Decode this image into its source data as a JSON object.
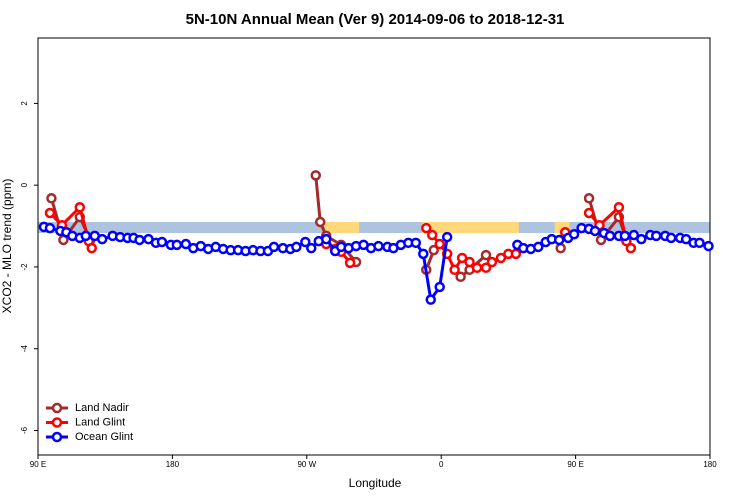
{
  "chart_data": {
    "type": "line",
    "title": "5N-10N Annual Mean (Ver 9)   2014-09-06 to 2018-12-31",
    "x_label": "Longitude",
    "y_label": "XCO2 - MLO trend (ppm)",
    "xlim": [
      90,
      540
    ],
    "ylim": [
      -6.6,
      3.6
    ],
    "xticks": [
      {
        "value": 90,
        "label": "90 E"
      },
      {
        "value": 180,
        "label": "180"
      },
      {
        "value": 270,
        "label": "90 W"
      },
      {
        "value": 360,
        "label": "0"
      },
      {
        "value": 450,
        "label": "90 E"
      },
      {
        "value": 540,
        "label": "180"
      }
    ],
    "yticks": [
      -6,
      -4,
      -2,
      0,
      2
    ],
    "band": {
      "y": [
        -1.17,
        -0.9
      ],
      "color": "#aec3df"
    },
    "highlights": [
      {
        "x": [
          281,
          305
        ],
        "color": "#ffd87a"
      },
      {
        "x": [
          347,
          412
        ],
        "color": "#ffd87a"
      },
      {
        "x": [
          436,
          446
        ],
        "color": "#ffd87a"
      }
    ],
    "legend": "bottom-left",
    "series": [
      {
        "name": "Land Nadir",
        "color": "#a52a2a",
        "x": [
          99,
          107,
          118,
          125,
          null,
          276,
          279,
          283,
          293,
          303,
          null,
          350,
          355,
          null,
          373,
          379,
          390,
          null,
          440,
          null,
          459,
          467,
          479,
          484
        ],
        "values": [
          -0.32,
          -1.34,
          -0.78,
          -1.34,
          null,
          0.24,
          -0.9,
          -1.24,
          -1.46,
          -1.88,
          null,
          -2.07,
          -1.59,
          null,
          -2.24,
          -2.07,
          -1.71,
          null,
          -1.54,
          null,
          -0.32,
          -1.34,
          -0.78,
          -1.34
        ]
      },
      {
        "name": "Land Glint",
        "color": "#ff0000",
        "x": [
          98,
          106,
          118,
          124,
          126,
          null,
          283,
          289,
          293,
          299,
          null,
          350,
          354,
          359,
          364,
          369,
          374,
          379,
          384,
          390,
          394,
          400,
          405,
          410,
          null,
          443,
          null,
          459,
          466,
          479,
          484,
          487
        ],
        "values": [
          -0.68,
          -0.98,
          -0.54,
          -1.37,
          -1.54,
          null,
          -1.44,
          -1.56,
          -1.63,
          -1.9,
          null,
          -1.05,
          -1.22,
          -1.44,
          -1.68,
          -2.07,
          -1.78,
          -1.88,
          -2.02,
          -2.02,
          -1.88,
          -1.78,
          -1.68,
          -1.68,
          null,
          -1.15,
          null,
          -0.68,
          -0.98,
          -0.54,
          -1.37,
          -1.54
        ]
      },
      {
        "name": "Ocean Glint",
        "color": "#0000ff",
        "x": [
          94,
          98,
          105,
          109,
          113,
          118,
          122,
          128,
          133,
          140,
          145,
          150,
          154,
          158,
          164,
          169,
          173,
          179,
          183,
          189,
          194,
          199,
          204,
          209,
          214,
          219,
          224,
          229,
          234,
          239,
          244,
          248,
          254,
          259,
          263,
          269,
          273,
          278,
          283,
          289,
          293,
          298,
          303,
          308,
          313,
          318,
          324,
          328,
          333,
          338,
          343,
          348,
          353,
          359,
          364,
          null,
          411,
          415,
          420,
          425,
          430,
          434,
          439,
          445,
          449,
          454,
          459,
          463,
          469,
          473,
          479,
          483,
          489,
          494,
          500,
          504,
          510,
          514,
          520,
          524,
          529,
          533,
          539
        ],
        "values": [
          -1.02,
          -1.05,
          -1.12,
          -1.15,
          -1.24,
          -1.29,
          -1.24,
          -1.24,
          -1.32,
          -1.24,
          -1.27,
          -1.29,
          -1.29,
          -1.34,
          -1.32,
          -1.41,
          -1.39,
          -1.46,
          -1.46,
          -1.44,
          -1.54,
          -1.49,
          -1.56,
          -1.51,
          -1.56,
          -1.59,
          -1.59,
          -1.61,
          -1.59,
          -1.61,
          -1.61,
          -1.51,
          -1.54,
          -1.56,
          -1.51,
          -1.39,
          -1.54,
          -1.37,
          -1.32,
          -1.61,
          -1.51,
          -1.54,
          -1.49,
          -1.46,
          -1.54,
          -1.49,
          -1.51,
          -1.54,
          -1.46,
          -1.41,
          -1.41,
          -1.68,
          -2.8,
          -2.49,
          -1.27,
          null,
          -1.46,
          -1.54,
          -1.56,
          -1.51,
          -1.39,
          -1.32,
          -1.34,
          -1.29,
          -1.2,
          -1.05,
          -1.07,
          -1.12,
          -1.17,
          -1.24,
          -1.24,
          -1.24,
          -1.22,
          -1.32,
          -1.22,
          -1.24,
          -1.24,
          -1.29,
          -1.29,
          -1.32,
          -1.41,
          -1.41,
          -1.49
        ]
      }
    ]
  }
}
